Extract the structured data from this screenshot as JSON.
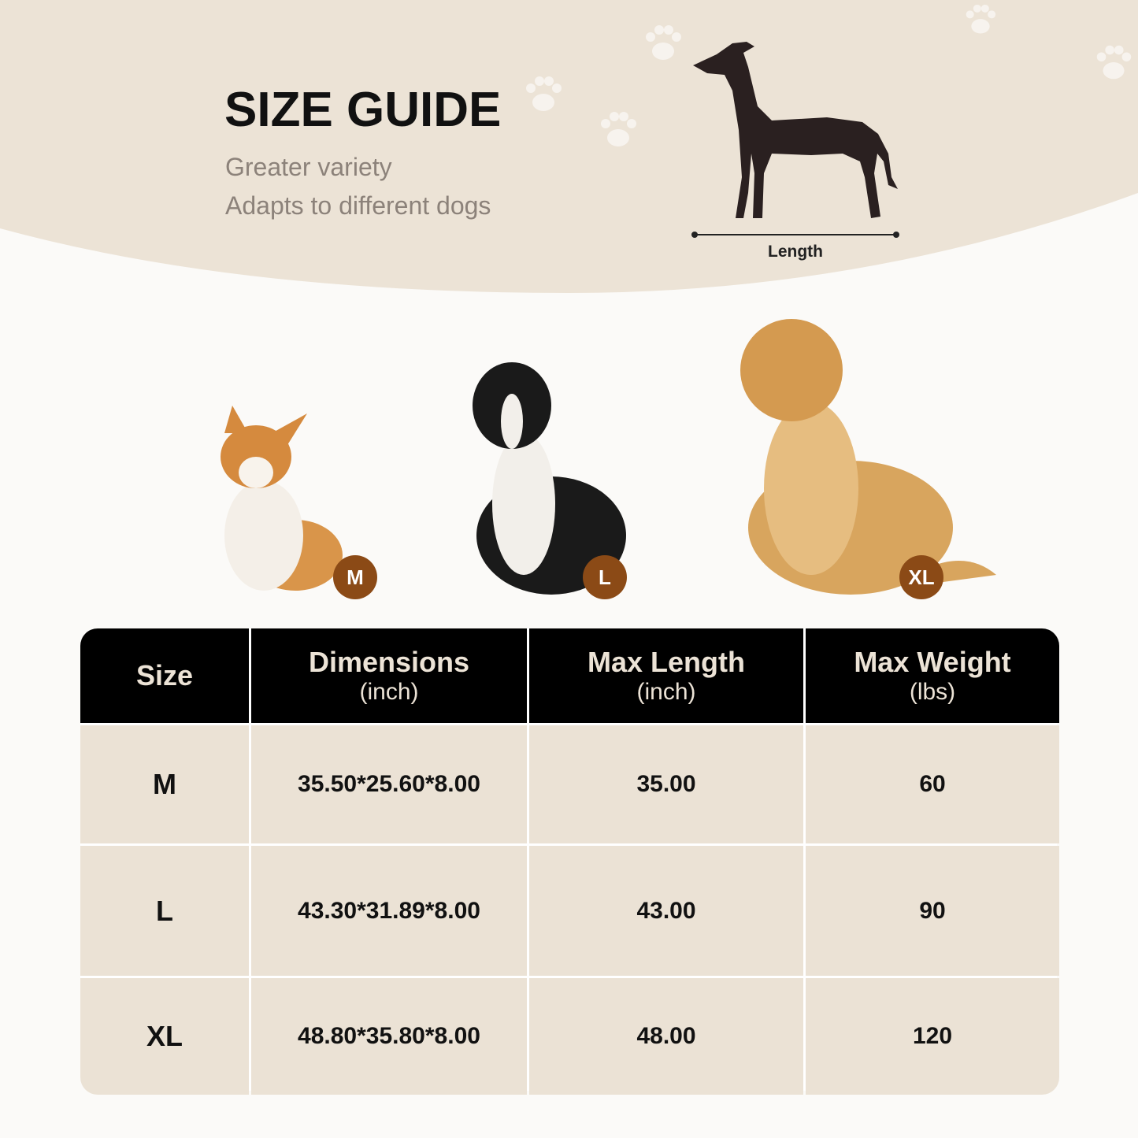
{
  "header": {
    "title": "SIZE GUIDE",
    "subtitle_lines": [
      "Greater variety",
      "Adapts to different dogs"
    ],
    "diagram_label": "Length"
  },
  "dogs": [
    {
      "breed_icon": "corgi",
      "badge": "M"
    },
    {
      "breed_icon": "border-collie",
      "badge": "L"
    },
    {
      "breed_icon": "golden-retriever",
      "badge": "XL"
    }
  ],
  "table": {
    "headers": [
      {
        "main": "Size",
        "unit": ""
      },
      {
        "main": "Dimensions",
        "unit": "(inch)"
      },
      {
        "main": "Max Length",
        "unit": "(inch)"
      },
      {
        "main": "Max Weight",
        "unit": "(lbs)"
      }
    ],
    "rows": [
      [
        "M",
        "35.50*25.60*8.00",
        "35.00",
        "60"
      ],
      [
        "L",
        "43.30*31.89*8.00",
        "43.00",
        "90"
      ],
      [
        "XL",
        "48.80*35.80*8.00",
        "48.00",
        "120"
      ]
    ]
  },
  "colors": {
    "header_bg": "#ece3d6",
    "badge": "#8b4a16",
    "table_header": "#000000",
    "table_row": "#ebe2d5"
  }
}
